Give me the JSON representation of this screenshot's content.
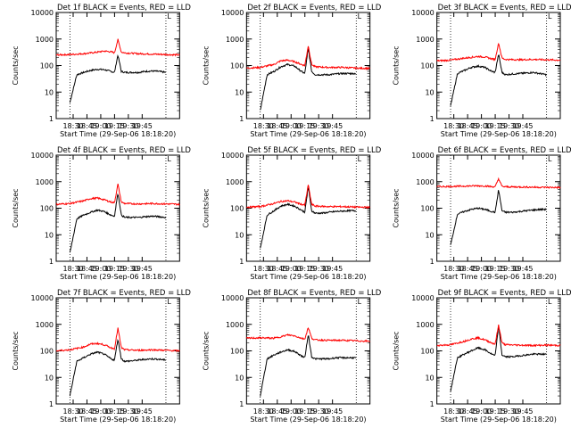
{
  "layout": {
    "rows": 3,
    "cols": 3
  },
  "chart_data": [
    {
      "type": "line",
      "title": "Det 1f BLACK = Events, RED = LLD",
      "xlabel": "Start Time (29-Sep-06 18:18:20)",
      "ylabel": "Counts/sec",
      "yscale": "log",
      "ylim": [
        1,
        10000
      ],
      "yticks": [
        "1",
        "10",
        "100",
        "1000",
        "10000"
      ],
      "xlim": [
        "18:18",
        "18:54"
      ],
      "xticks": [
        "18:30",
        "18:45",
        "19:00",
        "19:15",
        "19:30",
        "19:45"
      ],
      "vlines": [
        "18:22",
        "18:50"
      ],
      "corner_label": "L",
      "series": [
        {
          "name": "Events",
          "color": "#000000",
          "x": [
            "18:22",
            "18:24",
            "18:26",
            "18:28",
            "18:30",
            "18:32",
            "18:34",
            "18:35",
            "18:36",
            "18:37",
            "18:38",
            "18:40",
            "18:42",
            "18:44",
            "18:46",
            "18:48",
            "18:50"
          ],
          "values": [
            4,
            45,
            55,
            65,
            72,
            70,
            60,
            55,
            250,
            60,
            55,
            55,
            55,
            60,
            62,
            60,
            55
          ]
        },
        {
          "name": "LLD",
          "color": "#ff0000",
          "x": [
            "18:18",
            "18:22",
            "18:26",
            "18:30",
            "18:32",
            "18:34",
            "18:35",
            "18:36",
            "18:37",
            "18:38",
            "18:42",
            "18:46",
            "18:50",
            "18:54"
          ],
          "values": [
            250,
            260,
            280,
            320,
            350,
            330,
            300,
            950,
            320,
            300,
            280,
            270,
            260,
            250
          ]
        }
      ]
    },
    {
      "type": "line",
      "title": "Det 2f BLACK = Events, RED = LLD",
      "xlabel": "Start Time (29-Sep-06 18:18:20)",
      "ylabel": "Counts/sec",
      "yscale": "log",
      "ylim": [
        1,
        10000
      ],
      "yticks": [
        "1",
        "10",
        "100",
        "1000",
        "10000"
      ],
      "xlim": [
        "18:18",
        "18:54"
      ],
      "xticks": [
        "18:30",
        "18:45",
        "19:00",
        "19:15",
        "19:30",
        "19:45"
      ],
      "vlines": [
        "18:22",
        "18:50"
      ],
      "corner_label": "L",
      "series": [
        {
          "name": "Events",
          "color": "#000000",
          "x": [
            "18:22",
            "18:24",
            "18:26",
            "18:28",
            "18:30",
            "18:32",
            "18:34",
            "18:35",
            "18:36",
            "18:37",
            "18:38",
            "18:40",
            "18:42",
            "18:44",
            "18:46",
            "18:48",
            "18:50"
          ],
          "values": [
            2,
            45,
            60,
            90,
            110,
            95,
            60,
            50,
            450,
            60,
            45,
            45,
            45,
            48,
            50,
            50,
            50
          ]
        },
        {
          "name": "LLD",
          "color": "#ff0000",
          "x": [
            "18:18",
            "18:22",
            "18:26",
            "18:28",
            "18:30",
            "18:32",
            "18:34",
            "18:35",
            "18:36",
            "18:37",
            "18:38",
            "18:42",
            "18:46",
            "18:50",
            "18:54"
          ],
          "values": [
            80,
            85,
            110,
            150,
            160,
            140,
            110,
            100,
            550,
            110,
            90,
            85,
            85,
            80,
            78
          ]
        }
      ]
    },
    {
      "type": "line",
      "title": "Det 3f BLACK = Events, RED = LLD",
      "xlabel": "Start Time (29-Sep-06 18:18:20)",
      "ylabel": "Counts/sec",
      "yscale": "log",
      "ylim": [
        1,
        10000
      ],
      "yticks": [
        "1",
        "10",
        "100",
        "1000",
        "10000"
      ],
      "xlim": [
        "18:18",
        "18:54"
      ],
      "xticks": [
        "18:30",
        "18:45",
        "19:00",
        "19:15",
        "19:30",
        "19:45"
      ],
      "vlines": [
        "18:22",
        "18:50"
      ],
      "corner_label": "L",
      "series": [
        {
          "name": "Events",
          "color": "#000000",
          "x": [
            "18:22",
            "18:24",
            "18:26",
            "18:28",
            "18:30",
            "18:32",
            "18:34",
            "18:35",
            "18:36",
            "18:37",
            "18:38",
            "18:40",
            "18:42",
            "18:44",
            "18:46",
            "18:48",
            "18:50"
          ],
          "values": [
            3,
            50,
            65,
            85,
            95,
            85,
            60,
            55,
            270,
            55,
            45,
            48,
            50,
            52,
            55,
            50,
            45
          ]
        },
        {
          "name": "LLD",
          "color": "#ff0000",
          "x": [
            "18:18",
            "18:22",
            "18:26",
            "18:30",
            "18:32",
            "18:34",
            "18:35",
            "18:36",
            "18:37",
            "18:38",
            "18:42",
            "18:46",
            "18:50",
            "18:54"
          ],
          "values": [
            150,
            160,
            190,
            220,
            210,
            180,
            170,
            700,
            190,
            170,
            165,
            170,
            165,
            160
          ]
        }
      ]
    },
    {
      "type": "line",
      "title": "Det 4f BLACK = Events, RED = LLD",
      "xlabel": "Start Time (29-Sep-06 18:18:20)",
      "ylabel": "Counts/sec",
      "yscale": "log",
      "ylim": [
        1,
        10000
      ],
      "yticks": [
        "1",
        "10",
        "100",
        "1000",
        "10000"
      ],
      "xlim": [
        "18:18",
        "18:54"
      ],
      "xticks": [
        "18:30",
        "18:45",
        "19:00",
        "19:15",
        "19:30",
        "19:45"
      ],
      "vlines": [
        "18:22",
        "18:50"
      ],
      "corner_label": "L",
      "series": [
        {
          "name": "Events",
          "color": "#000000",
          "x": [
            "18:22",
            "18:24",
            "18:26",
            "18:28",
            "18:30",
            "18:32",
            "18:34",
            "18:35",
            "18:36",
            "18:37",
            "18:38",
            "18:40",
            "18:42",
            "18:44",
            "18:46",
            "18:48",
            "18:50"
          ],
          "values": [
            2,
            40,
            55,
            70,
            85,
            75,
            55,
            50,
            380,
            55,
            45,
            45,
            45,
            48,
            50,
            48,
            45
          ]
        },
        {
          "name": "LLD",
          "color": "#ff0000",
          "x": [
            "18:18",
            "18:22",
            "18:26",
            "18:28",
            "18:30",
            "18:32",
            "18:34",
            "18:35",
            "18:36",
            "18:37",
            "18:38",
            "18:42",
            "18:46",
            "18:50",
            "18:54"
          ],
          "values": [
            140,
            150,
            190,
            230,
            240,
            210,
            170,
            160,
            820,
            170,
            150,
            145,
            150,
            145,
            140
          ]
        }
      ]
    },
    {
      "type": "line",
      "title": "Det 5f BLACK = Events, RED = LLD",
      "xlabel": "Start Time (29-Sep-06 18:18:20)",
      "ylabel": "Counts/sec",
      "yscale": "log",
      "ylim": [
        1,
        10000
      ],
      "yticks": [
        "1",
        "10",
        "100",
        "1000",
        "10000"
      ],
      "xlim": [
        "18:18",
        "18:54"
      ],
      "xticks": [
        "18:30",
        "18:45",
        "19:00",
        "19:15",
        "19:30",
        "19:45"
      ],
      "vlines": [
        "18:22",
        "18:50"
      ],
      "corner_label": "L",
      "series": [
        {
          "name": "Events",
          "color": "#000000",
          "x": [
            "18:22",
            "18:24",
            "18:26",
            "18:28",
            "18:30",
            "18:32",
            "18:34",
            "18:35",
            "18:36",
            "18:37",
            "18:38",
            "18:40",
            "18:42",
            "18:44",
            "18:46",
            "18:48",
            "18:50"
          ],
          "values": [
            3,
            55,
            80,
            120,
            140,
            120,
            85,
            70,
            650,
            80,
            65,
            65,
            70,
            75,
            78,
            80,
            80
          ]
        },
        {
          "name": "LLD",
          "color": "#ff0000",
          "x": [
            "18:18",
            "18:22",
            "18:26",
            "18:28",
            "18:30",
            "18:32",
            "18:34",
            "18:35",
            "18:36",
            "18:37",
            "18:38",
            "18:42",
            "18:46",
            "18:50",
            "18:54"
          ],
          "values": [
            110,
            115,
            150,
            180,
            190,
            170,
            140,
            130,
            750,
            140,
            120,
            115,
            115,
            110,
            108
          ]
        }
      ]
    },
    {
      "type": "line",
      "title": "Det 6f BLACK = Events, RED = LLD",
      "xlabel": "Start Time (29-Sep-06 18:18:20)",
      "ylabel": "Counts/sec",
      "yscale": "log",
      "ylim": [
        1,
        10000
      ],
      "yticks": [
        "1",
        "10",
        "100",
        "1000",
        "10000"
      ],
      "xlim": [
        "18:18",
        "18:54"
      ],
      "xticks": [
        "18:30",
        "18:45",
        "19:00",
        "19:15",
        "19:30",
        "19:45"
      ],
      "vlines": [
        "18:22",
        "18:50"
      ],
      "corner_label": "L",
      "series": [
        {
          "name": "Events",
          "color": "#000000",
          "x": [
            "18:22",
            "18:24",
            "18:26",
            "18:28",
            "18:30",
            "18:32",
            "18:34",
            "18:35",
            "18:36",
            "18:37",
            "18:38",
            "18:40",
            "18:42",
            "18:44",
            "18:46",
            "18:48",
            "18:50"
          ],
          "values": [
            4,
            60,
            75,
            90,
            100,
            90,
            75,
            70,
            500,
            80,
            70,
            70,
            75,
            80,
            85,
            90,
            90
          ]
        },
        {
          "name": "LLD",
          "color": "#ff0000",
          "x": [
            "18:18",
            "18:22",
            "18:26",
            "18:30",
            "18:32",
            "18:34",
            "18:35",
            "18:36",
            "18:37",
            "18:38",
            "18:42",
            "18:46",
            "18:50",
            "18:54"
          ],
          "values": [
            650,
            660,
            680,
            700,
            690,
            650,
            640,
            1300,
            660,
            640,
            630,
            620,
            610,
            600
          ]
        }
      ]
    },
    {
      "type": "line",
      "title": "Det 7f BLACK = Events, RED = LLD",
      "xlabel": "Start Time (29-Sep-06 18:18:20)",
      "ylabel": "Counts/sec",
      "yscale": "log",
      "ylim": [
        1,
        10000
      ],
      "yticks": [
        "1",
        "10",
        "100",
        "1000",
        "10000"
      ],
      "xlim": [
        "18:18",
        "18:54"
      ],
      "xticks": [
        "18:30",
        "18:45",
        "19:00",
        "19:15",
        "19:30",
        "19:45"
      ],
      "vlines": [
        "18:22",
        "18:50"
      ],
      "corner_label": "L",
      "series": [
        {
          "name": "Events",
          "color": "#000000",
          "x": [
            "18:22",
            "18:24",
            "18:26",
            "18:28",
            "18:30",
            "18:32",
            "18:34",
            "18:35",
            "18:36",
            "18:37",
            "18:38",
            "18:40",
            "18:42",
            "18:44",
            "18:46",
            "18:48",
            "18:50"
          ],
          "values": [
            2,
            40,
            55,
            75,
            90,
            75,
            50,
            45,
            280,
            50,
            40,
            42,
            45,
            48,
            50,
            48,
            45
          ]
        },
        {
          "name": "LLD",
          "color": "#ff0000",
          "x": [
            "18:18",
            "18:22",
            "18:26",
            "18:28",
            "18:30",
            "18:32",
            "18:34",
            "18:35",
            "18:36",
            "18:37",
            "18:38",
            "18:42",
            "18:46",
            "18:50",
            "18:54"
          ],
          "values": [
            100,
            110,
            140,
            180,
            190,
            170,
            130,
            120,
            720,
            130,
            110,
            105,
            110,
            105,
            100
          ]
        }
      ]
    },
    {
      "type": "line",
      "title": "Det 8f BLACK = Events, RED = LLD",
      "xlabel": "Start Time (29-Sep-06 18:18:20)",
      "ylabel": "Counts/sec",
      "yscale": "log",
      "ylim": [
        1,
        10000
      ],
      "yticks": [
        "1",
        "10",
        "100",
        "1000",
        "10000"
      ],
      "xlim": [
        "18:18",
        "18:54"
      ],
      "xticks": [
        "18:30",
        "18:45",
        "19:00",
        "19:15",
        "19:30",
        "19:45"
      ],
      "vlines": [
        "18:22",
        "18:50"
      ],
      "corner_label": "L",
      "series": [
        {
          "name": "Events",
          "color": "#000000",
          "x": [
            "18:22",
            "18:24",
            "18:26",
            "18:28",
            "18:30",
            "18:32",
            "18:34",
            "18:35",
            "18:36",
            "18:37",
            "18:38",
            "18:40",
            "18:42",
            "18:44",
            "18:46",
            "18:48",
            "18:50"
          ],
          "values": [
            2,
            50,
            70,
            90,
            110,
            95,
            65,
            55,
            420,
            60,
            50,
            50,
            50,
            55,
            55,
            55,
            55
          ]
        },
        {
          "name": "LLD",
          "color": "#ff0000",
          "x": [
            "18:18",
            "18:22",
            "18:26",
            "18:28",
            "18:30",
            "18:32",
            "18:34",
            "18:35",
            "18:36",
            "18:37",
            "18:38",
            "18:42",
            "18:46",
            "18:50",
            "18:54"
          ],
          "values": [
            300,
            310,
            300,
            340,
            400,
            370,
            300,
            280,
            760,
            300,
            260,
            250,
            250,
            240,
            230
          ]
        }
      ]
    },
    {
      "type": "line",
      "title": "Det 9f BLACK = Events, RED = LLD",
      "xlabel": "Start Time (29-Sep-06 18:18:20)",
      "ylabel": "Counts/sec",
      "yscale": "log",
      "ylim": [
        1,
        10000
      ],
      "yticks": [
        "1",
        "10",
        "100",
        "1000",
        "10000"
      ],
      "xlim": [
        "18:18",
        "18:54"
      ],
      "xticks": [
        "18:30",
        "18:45",
        "19:00",
        "19:15",
        "19:30",
        "19:45"
      ],
      "vlines": [
        "18:22",
        "18:50"
      ],
      "corner_label": "L",
      "series": [
        {
          "name": "Events",
          "color": "#000000",
          "x": [
            "18:22",
            "18:24",
            "18:26",
            "18:28",
            "18:30",
            "18:32",
            "18:34",
            "18:35",
            "18:36",
            "18:37",
            "18:38",
            "18:40",
            "18:42",
            "18:44",
            "18:46",
            "18:48",
            "18:50"
          ],
          "values": [
            3,
            55,
            75,
            100,
            130,
            110,
            75,
            65,
            900,
            70,
            60,
            60,
            65,
            70,
            75,
            75,
            75
          ]
        },
        {
          "name": "LLD",
          "color": "#ff0000",
          "x": [
            "18:18",
            "18:22",
            "18:26",
            "18:28",
            "18:30",
            "18:32",
            "18:34",
            "18:35",
            "18:36",
            "18:37",
            "18:38",
            "18:42",
            "18:46",
            "18:50",
            "18:54"
          ],
          "values": [
            160,
            170,
            230,
            280,
            310,
            260,
            200,
            180,
            950,
            200,
            170,
            165,
            160,
            165,
            160
          ]
        }
      ]
    }
  ]
}
